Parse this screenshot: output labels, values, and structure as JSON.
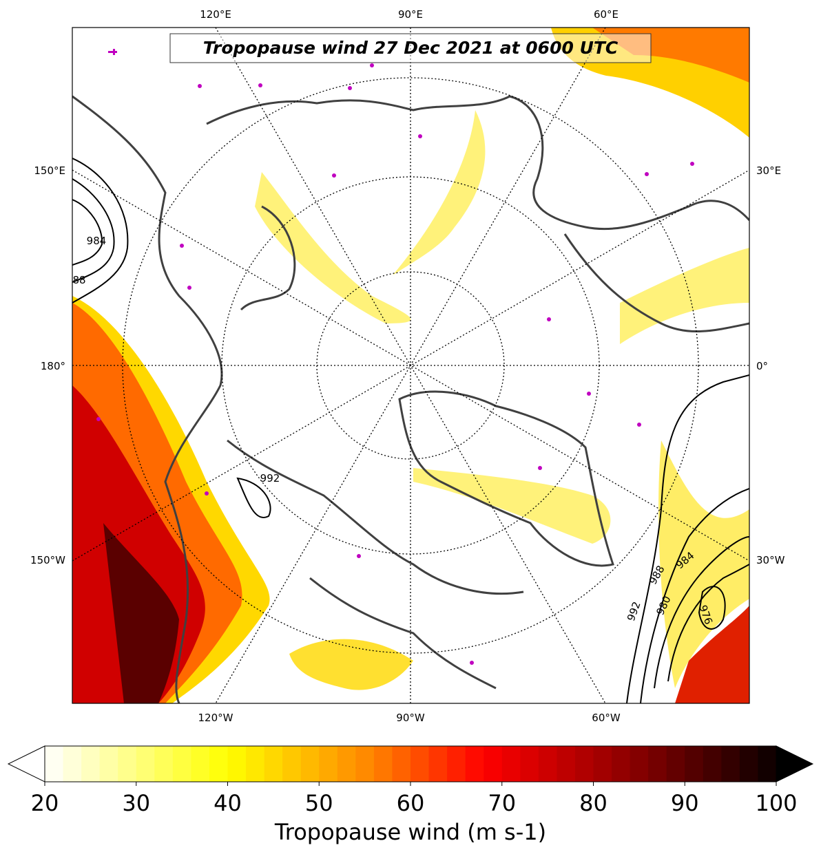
{
  "map": {
    "title": "Tropopause wind 27 Dec 2021 at 0600 UTC",
    "meridian_labels": {
      "top": [
        "120°E",
        "90°E",
        "60°E"
      ],
      "left": [
        "150°E",
        "180°",
        "150°W"
      ],
      "right": [
        "30°E",
        "0°",
        "30°W"
      ],
      "bottom": [
        "120°W",
        "90°W",
        "60°W"
      ]
    },
    "contour_labels": [
      "984",
      "88",
      "992",
      "992",
      "988",
      "984",
      "980",
      "976"
    ]
  },
  "colorbar": {
    "label": "Tropopause wind (m s-1)",
    "lim": [
      20,
      100
    ],
    "ticks": [
      20,
      30,
      40,
      50,
      60,
      70,
      80,
      90,
      100
    ]
  }
}
